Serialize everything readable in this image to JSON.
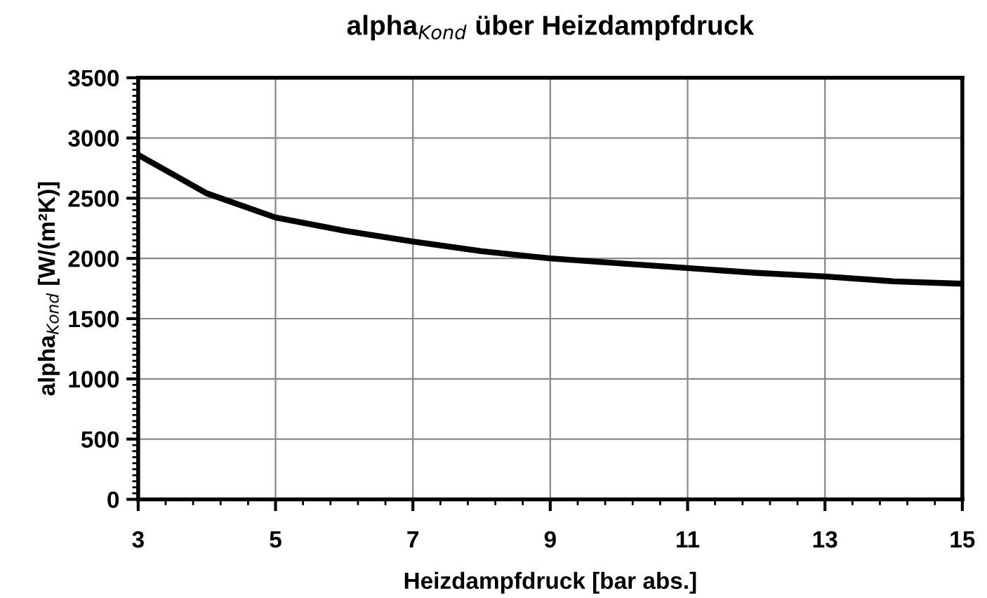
{
  "chart_data": {
    "type": "line",
    "title": "alpha$_{Kond}$ über Heizdampfdruck",
    "xlabel": "Heizdampfdruck [bar abs.]",
    "ylabel": "alpha$_{Kond}$ [W/(m²K)]",
    "x": [
      3,
      4,
      5,
      6,
      7,
      8,
      9,
      10,
      11,
      12,
      13,
      14,
      15
    ],
    "series": [
      {
        "color": "#000000",
        "values": [
          2860,
          2540,
          2340,
          2230,
          2140,
          2060,
          2000,
          1960,
          1920,
          1880,
          1850,
          1810,
          1790
        ]
      }
    ],
    "xlim": [
      3,
      15
    ],
    "xticks": [
      3,
      5,
      7,
      9,
      11,
      13,
      15
    ],
    "ylim": [
      0,
      3500
    ],
    "yticks": [
      0,
      500,
      1000,
      1500,
      2000,
      2500,
      3000,
      3500
    ],
    "grid": true,
    "marker": "none",
    "line_style": "solid",
    "legend": false
  }
}
